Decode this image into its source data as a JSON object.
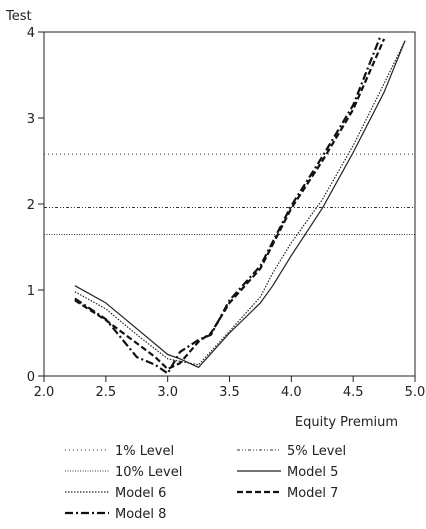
{
  "chart_data": {
    "type": "line",
    "ylabel": "Test",
    "xlabel": "Equity Premium",
    "xlim": [
      2.0,
      5.0
    ],
    "ylim": [
      0,
      4
    ],
    "xticks": [
      "2.0",
      "2.5",
      "3.0",
      "3.5",
      "4.0",
      "4.5",
      "5.0"
    ],
    "yticks": [
      "0",
      "1",
      "2",
      "3",
      "4"
    ],
    "grid": false,
    "legend_position": "bottom",
    "reference_lines": [
      {
        "name": "1% Level",
        "value": 2.58,
        "style": "dotted-sparse"
      },
      {
        "name": "5% Level",
        "value": 1.96,
        "style": "dash-dot-dot"
      },
      {
        "name": "10% Level",
        "value": 1.645,
        "style": "dotted-dense"
      }
    ],
    "series": [
      {
        "name": "Model 5",
        "style": "solid",
        "points": [
          [
            2.25,
            1.05
          ],
          [
            2.5,
            0.85
          ],
          [
            2.75,
            0.55
          ],
          [
            3.0,
            0.25
          ],
          [
            3.1,
            0.2
          ],
          [
            3.25,
            0.1
          ],
          [
            3.5,
            0.5
          ],
          [
            3.75,
            0.85
          ],
          [
            3.85,
            1.05
          ],
          [
            4.0,
            1.4
          ],
          [
            4.25,
            1.95
          ],
          [
            4.5,
            2.6
          ],
          [
            4.75,
            3.3
          ],
          [
            4.92,
            3.9
          ]
        ]
      },
      {
        "name": "Model 6",
        "style": "dotted",
        "points": [
          [
            2.25,
            0.98
          ],
          [
            2.5,
            0.78
          ],
          [
            2.75,
            0.48
          ],
          [
            3.0,
            0.2
          ],
          [
            3.1,
            0.17
          ],
          [
            3.25,
            0.13
          ],
          [
            3.5,
            0.52
          ],
          [
            3.75,
            0.92
          ],
          [
            3.85,
            1.2
          ],
          [
            4.0,
            1.55
          ],
          [
            4.25,
            2.05
          ],
          [
            4.5,
            2.68
          ],
          [
            4.75,
            3.4
          ],
          [
            4.92,
            3.9
          ]
        ]
      },
      {
        "name": "Model 7",
        "style": "dashed",
        "points": [
          [
            2.25,
            0.88
          ],
          [
            2.5,
            0.65
          ],
          [
            2.75,
            0.38
          ],
          [
            2.9,
            0.22
          ],
          [
            3.0,
            0.08
          ],
          [
            3.1,
            0.15
          ],
          [
            3.25,
            0.4
          ],
          [
            3.35,
            0.5
          ],
          [
            3.5,
            0.85
          ],
          [
            3.75,
            1.25
          ],
          [
            4.0,
            1.95
          ],
          [
            4.25,
            2.5
          ],
          [
            4.5,
            3.1
          ],
          [
            4.75,
            3.92
          ]
        ]
      },
      {
        "name": "Model 8",
        "style": "dash-dot",
        "points": [
          [
            2.25,
            0.9
          ],
          [
            2.5,
            0.66
          ],
          [
            2.75,
            0.22
          ],
          [
            2.9,
            0.13
          ],
          [
            3.0,
            0.03
          ],
          [
            3.1,
            0.28
          ],
          [
            3.25,
            0.42
          ],
          [
            3.35,
            0.48
          ],
          [
            3.5,
            0.88
          ],
          [
            3.75,
            1.28
          ],
          [
            4.0,
            1.98
          ],
          [
            4.25,
            2.55
          ],
          [
            4.5,
            3.15
          ],
          [
            4.72,
            3.95
          ]
        ]
      }
    ]
  }
}
